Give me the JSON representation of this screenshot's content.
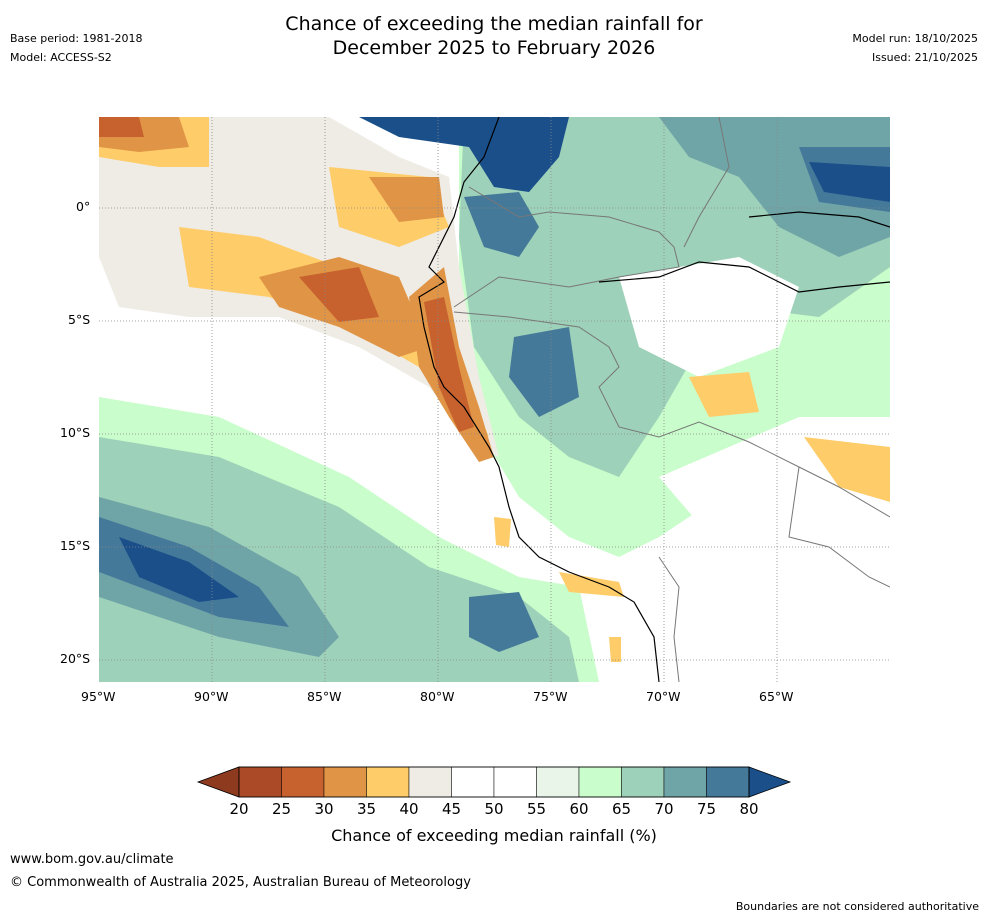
{
  "header": {
    "base_period": "Base period: 1981-2018",
    "model": "Model: ACCESS-S2",
    "title_line1": "Chance of exceeding the median rainfall for",
    "title_line2": "December 2025 to February 2026",
    "model_run": "Model run: 18/10/2025",
    "issued": "Issued: 21/10/2025"
  },
  "map": {
    "lat_labels": [
      "0°",
      "5°S",
      "10°S",
      "15°S",
      "20°S"
    ],
    "lon_labels": [
      "95°W",
      "90°W",
      "85°W",
      "80°W",
      "75°W",
      "70°W",
      "65°W"
    ]
  },
  "colorbar": {
    "ticks": [
      "20",
      "25",
      "30",
      "35",
      "40",
      "45",
      "50",
      "55",
      "60",
      "65",
      "70",
      "75",
      "80"
    ],
    "colors": [
      "#ab4a27",
      "#c7622f",
      "#e09445",
      "#fecc69",
      "#efece6",
      "#ffffff",
      "#ffffff",
      "#e9f5e8",
      "#c9fdcb",
      "#9ed1b9",
      "#70a5a8",
      "#44799a"
    ],
    "low_end_color": "#8d3a1f",
    "high_end_color": "#1a4f8a",
    "label": "Chance of exceeding median rainfall (%)"
  },
  "footer": {
    "url": "www.bom.gov.au/climate",
    "copyright": "© Commonwealth of Australia 2025, Australian Bureau of Meteorology",
    "disclaimer": "Boundaries are not considered authoritative"
  }
}
